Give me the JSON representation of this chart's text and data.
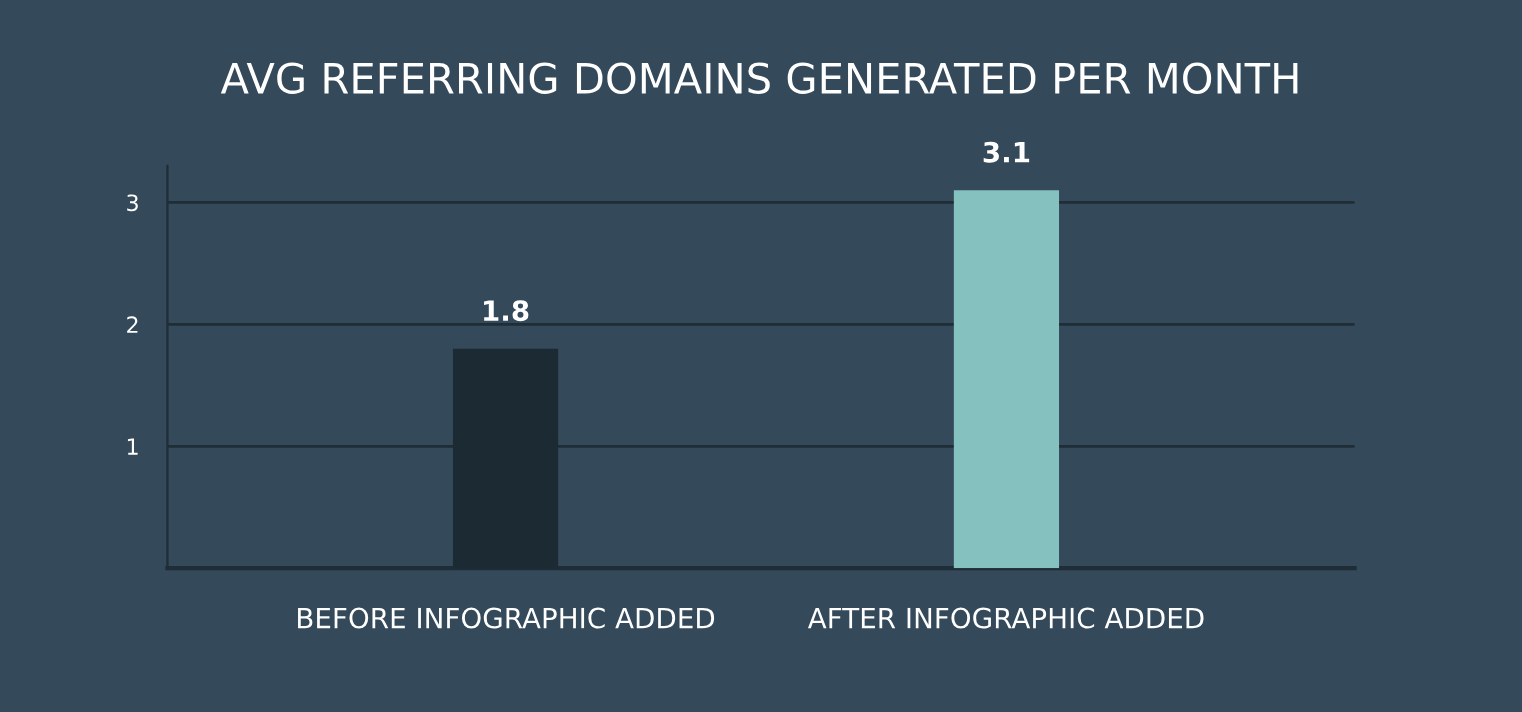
{
  "chart_data": {
    "type": "bar",
    "title": "AVG REFERRING DOMAINS GENERATED PER MONTH",
    "categories": [
      "BEFORE INFOGRAPHIC ADDED",
      "AFTER INFOGRAPHIC ADDED"
    ],
    "values": [
      1.8,
      3.1
    ],
    "colors": [
      "#1c2b33",
      "#84c1bf"
    ],
    "ylim": [
      0,
      3.3
    ],
    "yticks": [
      1,
      2,
      3
    ],
    "grid": "y",
    "data_labels": true
  }
}
